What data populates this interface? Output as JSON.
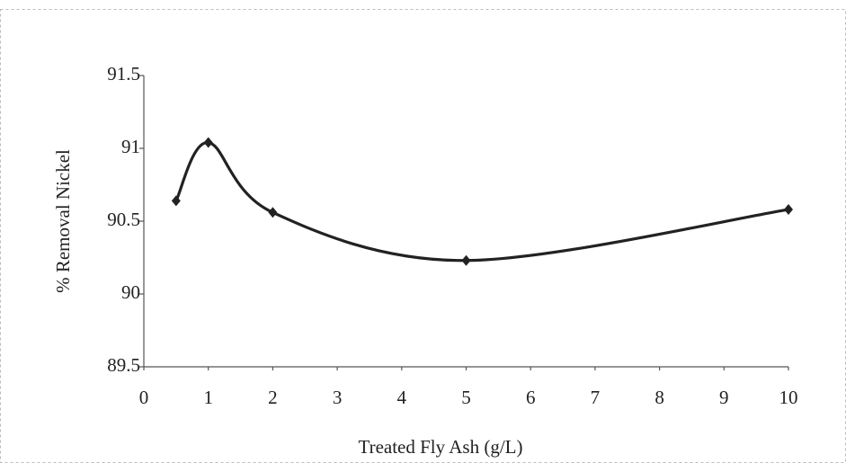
{
  "chart_data": {
    "type": "line",
    "x_label": "Treated Fly Ash (g/L)",
    "y_label": "% Removal Nickel",
    "x": [
      0.5,
      1,
      2,
      5,
      10
    ],
    "values": [
      90.64,
      91.04,
      90.56,
      90.23,
      90.58
    ],
    "color": "#222222",
    "smooth": true,
    "xlim": [
      0,
      10
    ],
    "xticks": [
      0,
      1,
      2,
      3,
      4,
      5,
      6,
      7,
      8,
      9,
      10
    ],
    "ylim": [
      89.5,
      91.5
    ],
    "yticks": [
      89.5,
      90,
      90.5,
      91,
      91.5
    ],
    "grid": false
  }
}
